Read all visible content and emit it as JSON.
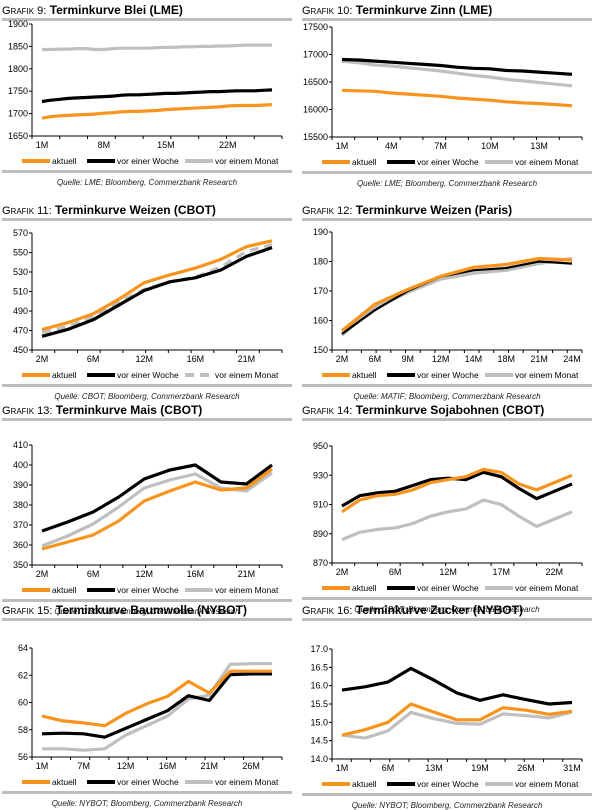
{
  "legend_labels": [
    "aktuell",
    "vor einer Woche",
    "vor einem Monat"
  ],
  "series_colors": {
    "aktuell": "#f7941d",
    "vor einer Woche": "#000000",
    "vor einem Monat": "#bfbfbf"
  },
  "chart_data": [
    {
      "id": "g9",
      "type": "line",
      "title_prefix": "Grafik 9:",
      "title": "Terminkurve Blei (LME)",
      "source": "Quelle: LME; Bloomberg, Commerzbank Research",
      "xlabel": "",
      "ylabel": "",
      "x_ticks": [
        "1M",
        "8M",
        "15M",
        "22M"
      ],
      "x_tick_index": [
        0,
        7,
        14,
        21
      ],
      "n_points": 27,
      "ylim": [
        1650,
        1900
      ],
      "y_ticks": [
        1650,
        1700,
        1750,
        1800,
        1850,
        1900
      ],
      "y_decimals": 0,
      "legend_position": "bottom",
      "series": [
        {
          "name": "aktuell",
          "values": [
            1690,
            1693,
            1695,
            1696,
            1697,
            1698,
            1699,
            1701,
            1702,
            1704,
            1705,
            1705,
            1706,
            1707,
            1709,
            1710,
            1711,
            1712,
            1713,
            1714,
            1715,
            1717,
            1718,
            1718,
            1718,
            1719,
            1720
          ]
        },
        {
          "name": "vor einer Woche",
          "values": [
            1727,
            1730,
            1732,
            1734,
            1735,
            1736,
            1737,
            1738,
            1739,
            1741,
            1742,
            1742,
            1743,
            1744,
            1745,
            1745,
            1746,
            1747,
            1748,
            1749,
            1749,
            1750,
            1751,
            1751,
            1751,
            1752,
            1753
          ]
        },
        {
          "name": "vor einem Monat",
          "values": [
            1843,
            1843,
            1844,
            1844,
            1845,
            1845,
            1843,
            1843,
            1845,
            1846,
            1846,
            1846,
            1846,
            1847,
            1848,
            1848,
            1849,
            1849,
            1850,
            1850,
            1851,
            1851,
            1852,
            1853,
            1853,
            1853,
            1853
          ]
        }
      ]
    },
    {
      "id": "g10",
      "type": "line",
      "title_prefix": "Grafik 10:",
      "title": "Terminkurve Zinn (LME)",
      "source": "Quelle: LME; Bloomberg, Commerzbank Research",
      "xlabel": "",
      "ylabel": "",
      "x_ticks": [
        "1M",
        "4M",
        "7M",
        "10M",
        "13M"
      ],
      "x_tick_index": [
        0,
        3,
        6,
        9,
        12
      ],
      "n_points": 15,
      "ylim": [
        15500,
        17500
      ],
      "y_ticks": [
        15500,
        16000,
        16500,
        17000,
        17500
      ],
      "y_decimals": 0,
      "legend_position": "bottom",
      "series": [
        {
          "name": "aktuell",
          "values": [
            16350,
            16340,
            16330,
            16300,
            16280,
            16260,
            16240,
            16210,
            16190,
            16170,
            16140,
            16120,
            16110,
            16090,
            16070
          ]
        },
        {
          "name": "vor einer Woche",
          "values": [
            16910,
            16900,
            16880,
            16860,
            16840,
            16820,
            16800,
            16770,
            16750,
            16740,
            16710,
            16700,
            16680,
            16660,
            16640
          ]
        },
        {
          "name": "vor einem Monat",
          "values": [
            16880,
            16850,
            16810,
            16790,
            16760,
            16730,
            16700,
            16660,
            16620,
            16590,
            16550,
            16520,
            16490,
            16460,
            16430
          ]
        }
      ]
    },
    {
      "id": "g11",
      "type": "line",
      "title_prefix": "Grafik 11:",
      "title": "Terminkurve Weizen (CBOT)",
      "source": "Quelle: CBOT; Bloomberg, Commerzbank Research",
      "xlabel": "",
      "ylabel": "",
      "x_ticks": [
        "2M",
        "6M",
        "12M",
        "16M",
        "21M"
      ],
      "x_tick_index": [
        0,
        2,
        4,
        6,
        8
      ],
      "n_points": 10,
      "ylim": [
        450,
        570
      ],
      "y_ticks": [
        450,
        470,
        490,
        510,
        530,
        550,
        570
      ],
      "y_decimals": 0,
      "legend_position": "bottom",
      "series": [
        {
          "name": "aktuell",
          "values": [
            471,
            478,
            487,
            502,
            519,
            527,
            534,
            543,
            556,
            562
          ]
        },
        {
          "name": "vor einer Woche",
          "values": [
            464,
            471,
            481,
            496,
            511,
            520,
            524,
            532,
            546,
            555
          ]
        },
        {
          "name": "vor einem Monat",
          "values": [
            468,
            474,
            484,
            499,
            512,
            520,
            525,
            535,
            551,
            558
          ]
        }
      ]
    },
    {
      "id": "g12",
      "type": "line",
      "title_prefix": "Grafik 12:",
      "title": "Terminkurve Weizen (Paris)",
      "source": "Quelle: MATIF; Bloomberg, Commerzbank Research",
      "xlabel": "",
      "ylabel": "",
      "x_ticks": [
        "2M",
        "6M",
        "9M",
        "12M",
        "14M",
        "18M",
        "21M",
        "24M"
      ],
      "x_tick_index": [
        0,
        1,
        2,
        3,
        4,
        5,
        6,
        7
      ],
      "n_points": 8,
      "ylim": [
        150,
        190
      ],
      "y_ticks": [
        150,
        160,
        170,
        180,
        190
      ],
      "y_decimals": 0,
      "legend_position": "bottom",
      "series": [
        {
          "name": "aktuell",
          "values": [
            156.5,
            165.5,
            170.5,
            175,
            178,
            179,
            181,
            180.5
          ]
        },
        {
          "name": "vor einer Woche",
          "values": [
            155.5,
            163.5,
            170,
            174.8,
            177,
            177.8,
            180,
            179.3
          ]
        },
        {
          "name": "vor einem Monat",
          "values": [
            155,
            164.5,
            169.5,
            174,
            176,
            177,
            179.3,
            181
          ]
        }
      ]
    },
    {
      "id": "g13",
      "type": "line",
      "title_prefix": "Grafik 13:",
      "title": "Terminkurve Mais (CBOT)",
      "source": "Quelle: CBOT; Bloomberg, Commerzbank Research",
      "xlabel": "",
      "ylabel": "",
      "x_ticks": [
        "2M",
        "6M",
        "12M",
        "16M",
        "21M"
      ],
      "x_tick_index": [
        0,
        2,
        4,
        6,
        8
      ],
      "n_points": 10,
      "ylim": [
        350,
        410
      ],
      "y_ticks": [
        350,
        360,
        370,
        380,
        390,
        400,
        410
      ],
      "y_decimals": 0,
      "legend_position": "bottom",
      "series": [
        {
          "name": "aktuell",
          "values": [
            358,
            361.5,
            365,
            372,
            382,
            387,
            391.5,
            387.5,
            388.5,
            398
          ]
        },
        {
          "name": "vor einer Woche",
          "values": [
            367,
            371.5,
            376.5,
            384,
            393,
            397.5,
            400,
            391.5,
            390.5,
            400
          ]
        },
        {
          "name": "vor einem Monat",
          "values": [
            359.5,
            364.5,
            370.5,
            379,
            388.5,
            392.5,
            395.5,
            388.5,
            387,
            396
          ]
        }
      ]
    },
    {
      "id": "g14",
      "type": "line",
      "title_prefix": "Grafik 14:",
      "title": "Terminkurve Sojabohnen (CBOT)",
      "source": "Quelle: CBOT; Bloomberg, Commerzbank Research",
      "xlabel": "",
      "ylabel": "",
      "x_ticks": [
        "2M",
        "6M",
        "12M",
        "17M",
        "22M"
      ],
      "x_tick_index": [
        0,
        3,
        6,
        9,
        12
      ],
      "n_points": 14,
      "ylim": [
        870,
        950
      ],
      "y_ticks": [
        870,
        890,
        910,
        930,
        950
      ],
      "y_decimals": 0,
      "legend_position": "bottom",
      "series": [
        {
          "name": "aktuell",
          "values": [
            905,
            913,
            916,
            917,
            920,
            925,
            927,
            929,
            934,
            932,
            924,
            920,
            925,
            930
          ]
        },
        {
          "name": "vor einer Woche",
          "values": [
            909,
            916,
            918,
            919,
            923,
            927,
            928,
            927,
            932,
            929,
            921,
            914,
            919,
            924
          ]
        },
        {
          "name": "vor einem Monat",
          "values": [
            886,
            891,
            893,
            894,
            897,
            902,
            905,
            907,
            913,
            910,
            902,
            895,
            900,
            905
          ]
        }
      ]
    },
    {
      "id": "g15",
      "type": "line",
      "title_prefix": "Grafik 15:",
      "title": "Terminkurve Baumwolle (NYBOT)",
      "source": "Quelle: NYBOT; Bloomberg, Commerzbank Research",
      "xlabel": "",
      "ylabel": "",
      "x_ticks": [
        "1M",
        "7M",
        "12M",
        "16M",
        "21M",
        "26M"
      ],
      "x_tick_index": [
        0,
        2,
        4,
        6,
        8,
        10
      ],
      "n_points": 12,
      "ylim": [
        56,
        64
      ],
      "y_ticks": [
        56,
        58,
        60,
        62,
        64
      ],
      "y_decimals": 0,
      "legend_position": "bottom",
      "series": [
        {
          "name": "aktuell",
          "values": [
            59.0,
            58.65,
            58.5,
            58.3,
            59.2,
            59.9,
            60.45,
            61.55,
            60.7,
            62.3,
            62.3,
            62.3
          ]
        },
        {
          "name": "vor einer Woche",
          "values": [
            57.7,
            57.75,
            57.7,
            57.45,
            58.1,
            58.75,
            59.4,
            60.5,
            60.15,
            62.05,
            62.1,
            62.1
          ]
        },
        {
          "name": "vor einem Monat",
          "values": [
            56.6,
            56.6,
            56.5,
            56.6,
            57.6,
            58.3,
            59.0,
            60.25,
            60.55,
            62.8,
            62.85,
            62.85
          ]
        }
      ]
    },
    {
      "id": "g16",
      "type": "line",
      "title_prefix": "Grafik 16:",
      "title": "Terminkurve Zucker (NYBOT)",
      "source": "Quelle: NYBOT; Bloomberg, Commerzbank Research",
      "xlabel": "",
      "ylabel": "",
      "x_ticks": [
        "1M",
        "6M",
        "13M",
        "19M",
        "26M",
        "31M"
      ],
      "x_tick_index": [
        0,
        2,
        4,
        6,
        8,
        10
      ],
      "n_points": 11,
      "ylim": [
        14.0,
        17.0
      ],
      "y_ticks": [
        14.0,
        14.5,
        15.0,
        15.5,
        16.0,
        16.5,
        17.0
      ],
      "y_decimals": 1,
      "legend_position": "bottom",
      "series": [
        {
          "name": "aktuell",
          "values": [
            14.65,
            14.8,
            15.0,
            15.5,
            15.28,
            15.07,
            15.07,
            15.4,
            15.33,
            15.22,
            15.3
          ]
        },
        {
          "name": "vor einer Woche",
          "values": [
            15.88,
            15.97,
            16.1,
            16.47,
            16.15,
            15.8,
            15.6,
            15.75,
            15.62,
            15.5,
            15.54
          ]
        },
        {
          "name": "vor einem Monat",
          "values": [
            14.65,
            14.57,
            14.77,
            15.27,
            15.1,
            14.97,
            14.95,
            15.23,
            15.18,
            15.12,
            15.28
          ]
        }
      ]
    }
  ]
}
